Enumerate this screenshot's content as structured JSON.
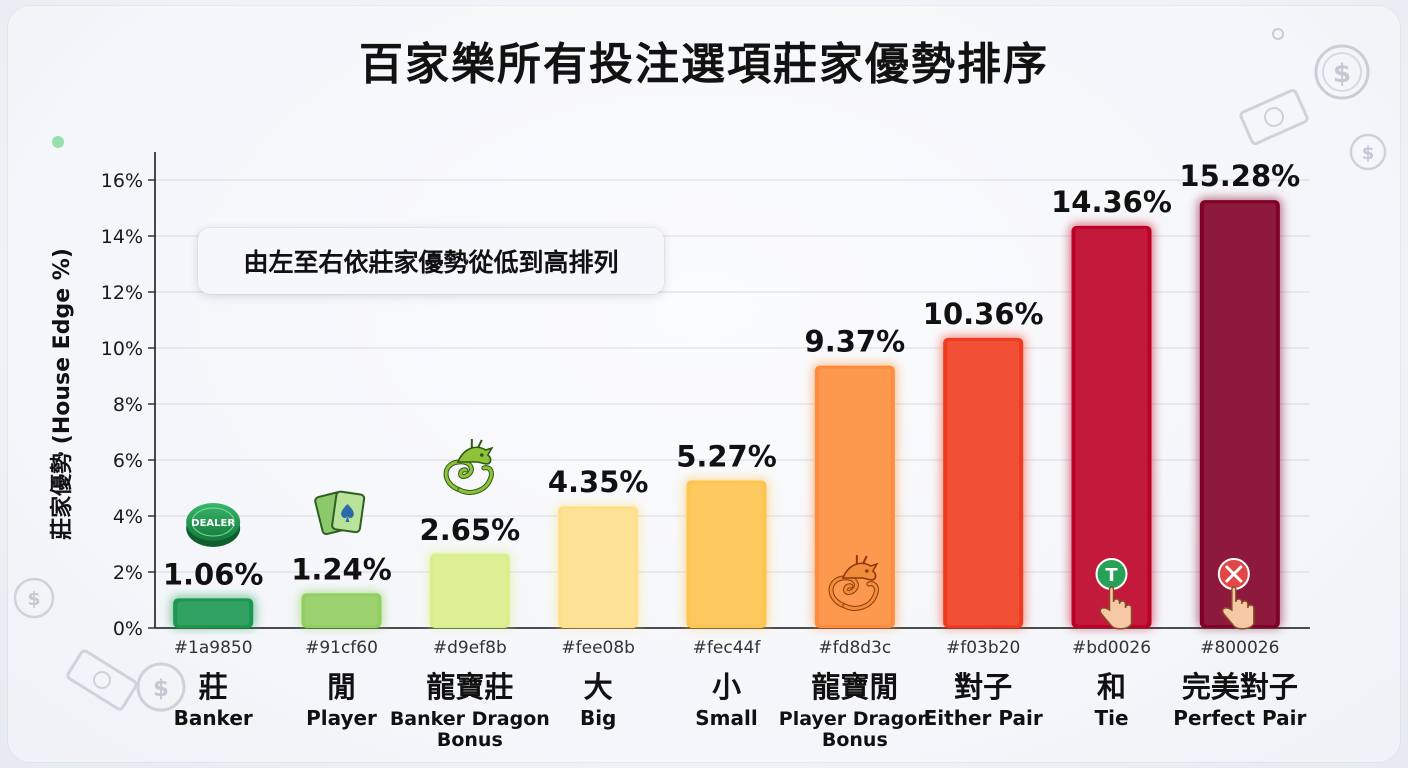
{
  "title": "百家樂所有投注選項莊家優勢排序",
  "note": "由左至右依莊家優勢從低到高排列",
  "chart_data": {
    "type": "bar",
    "ylabel": "莊家優勢 (House Edge %)",
    "ylim": [
      0,
      16
    ],
    "yticks": [
      "0%",
      "2%",
      "4%",
      "6%",
      "8%",
      "10%",
      "12%",
      "14%",
      "16%"
    ],
    "grid": true,
    "categories": [
      {
        "zh": "莊",
        "en": "Banker",
        "hex": "#1a9850"
      },
      {
        "zh": "閒",
        "en": "Player",
        "hex": "#91cf60"
      },
      {
        "zh": "龍寶莊",
        "en": "Banker Dragon Bonus",
        "hex": "#d9ef8b"
      },
      {
        "zh": "大",
        "en": "Big",
        "hex": "#fee08b"
      },
      {
        "zh": "小",
        "en": "Small",
        "hex": "#fec44f"
      },
      {
        "zh": "龍寶閒",
        "en": "Player Dragon Bonus",
        "hex": "#fd8d3c"
      },
      {
        "zh": "對子",
        "en": "Either Pair",
        "hex": "#f03b20"
      },
      {
        "zh": "和",
        "en": "Tie",
        "hex": "#bd0026"
      },
      {
        "zh": "完美對子",
        "en": "Perfect Pair",
        "hex": "#800026"
      }
    ],
    "values": [
      1.06,
      1.24,
      2.65,
      4.35,
      5.27,
      9.37,
      10.36,
      14.36,
      15.28
    ],
    "value_labels": [
      "1.06%",
      "1.24%",
      "2.65%",
      "4.35%",
      "5.27%",
      "9.37%",
      "10.36%",
      "14.36%",
      "15.28%"
    ],
    "colors": [
      "#1a9850",
      "#91cf60",
      "#d9ef8b",
      "#fee08b",
      "#fec44f",
      "#fd8d3c",
      "#f03b20",
      "#bd0026",
      "#800026"
    ]
  },
  "icons": {
    "dealer_chip": "dealer-chip-icon",
    "dealer_chip_text": "DEALER",
    "cards": "playing-cards-icon",
    "dragon": "dragon-icon",
    "tie_hand": "tie-hand-icon",
    "tie_letter": "T",
    "pair_hand": "perfect-pair-hand-icon",
    "currency_symbol": "$"
  }
}
